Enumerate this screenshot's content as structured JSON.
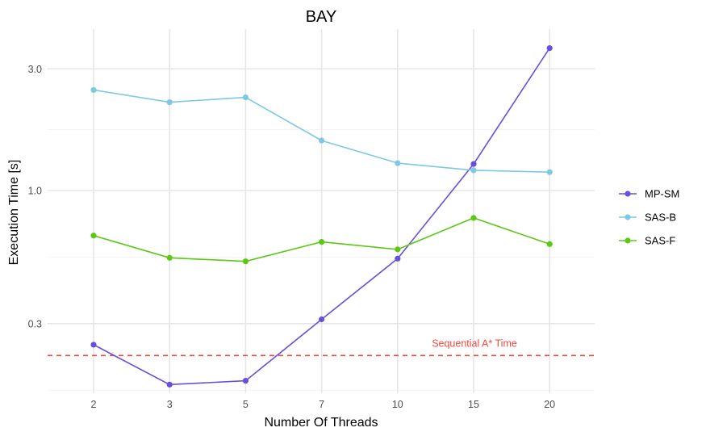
{
  "chart_data": {
    "type": "line",
    "title": "BAY",
    "xlabel": "Number Of Threads",
    "ylabel": "Execution Time [s]",
    "y_scale": "log10",
    "ylim": [
      0.16,
      4.3
    ],
    "y_ticks": [
      0.3,
      1.0,
      3.0
    ],
    "y_tick_labels": [
      "0.3",
      "1.0",
      "3.0"
    ],
    "categories": [
      "2",
      "3",
      "5",
      "7",
      "10",
      "15",
      "20"
    ],
    "grid": true,
    "legend_position": "right",
    "series": [
      {
        "name": "MP-SM",
        "color": "#6a4ede",
        "values": [
          0.248,
          0.173,
          0.179,
          0.312,
          0.54,
          1.27,
          3.62
        ]
      },
      {
        "name": "SAS-B",
        "color": "#7ec8e3",
        "values": [
          2.48,
          2.22,
          2.32,
          1.57,
          1.28,
          1.2,
          1.18
        ]
      },
      {
        "name": "SAS-F",
        "color": "#5cc816",
        "values": [
          0.665,
          0.544,
          0.527,
          0.628,
          0.587,
          0.78,
          0.616
        ]
      }
    ],
    "reference_line": {
      "label": "Sequential A* Time",
      "value": 0.225,
      "color": "#f04a3c",
      "style": "dashed"
    }
  }
}
